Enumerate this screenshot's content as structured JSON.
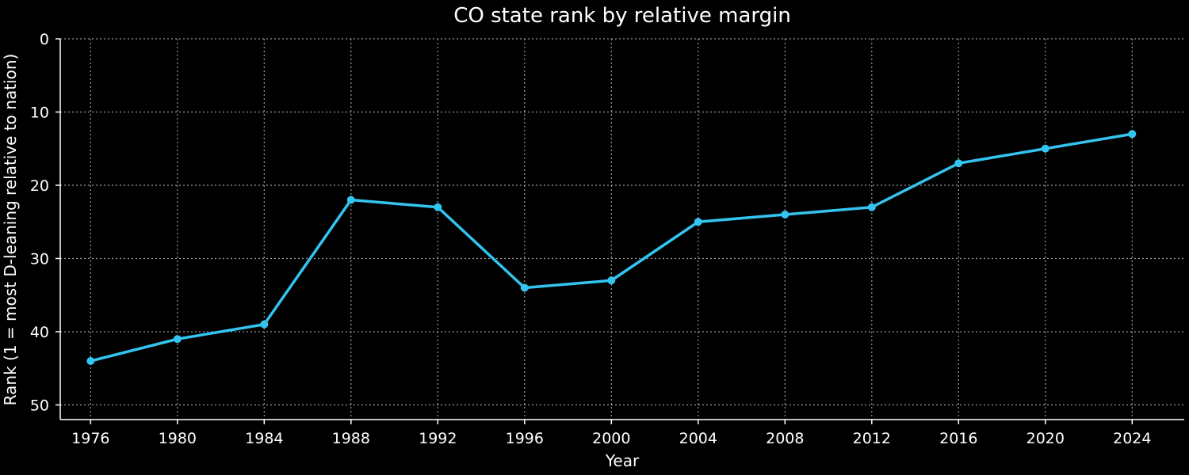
{
  "chart_data": {
    "type": "line",
    "title": "CO state rank by relative margin",
    "xlabel": "Year",
    "ylabel": "Rank (1 = most D-leaning relative to nation)",
    "x": [
      1976,
      1980,
      1984,
      1988,
      1992,
      1996,
      2000,
      2004,
      2008,
      2012,
      2016,
      2020,
      2024
    ],
    "series": [
      {
        "values": [
          44,
          41,
          39,
          22,
          23,
          34,
          33,
          25,
          24,
          23,
          17,
          15,
          13
        ],
        "color": "#33c4ef"
      }
    ],
    "x_ticks": [
      "1976",
      "1980",
      "1984",
      "1988",
      "1992",
      "1996",
      "2000",
      "2004",
      "2008",
      "2012",
      "2016",
      "2020",
      "2024"
    ],
    "y_ticks": [
      "0",
      "10",
      "20",
      "30",
      "40",
      "50"
    ],
    "y_tick_values": [
      0,
      10,
      20,
      30,
      40,
      50
    ],
    "xlim": [
      1973.6,
      1926.4
    ],
    "ylim": [
      52,
      0
    ],
    "y_inverted": true,
    "grid": true,
    "background": "#000000",
    "text_color": "#ffffff"
  }
}
